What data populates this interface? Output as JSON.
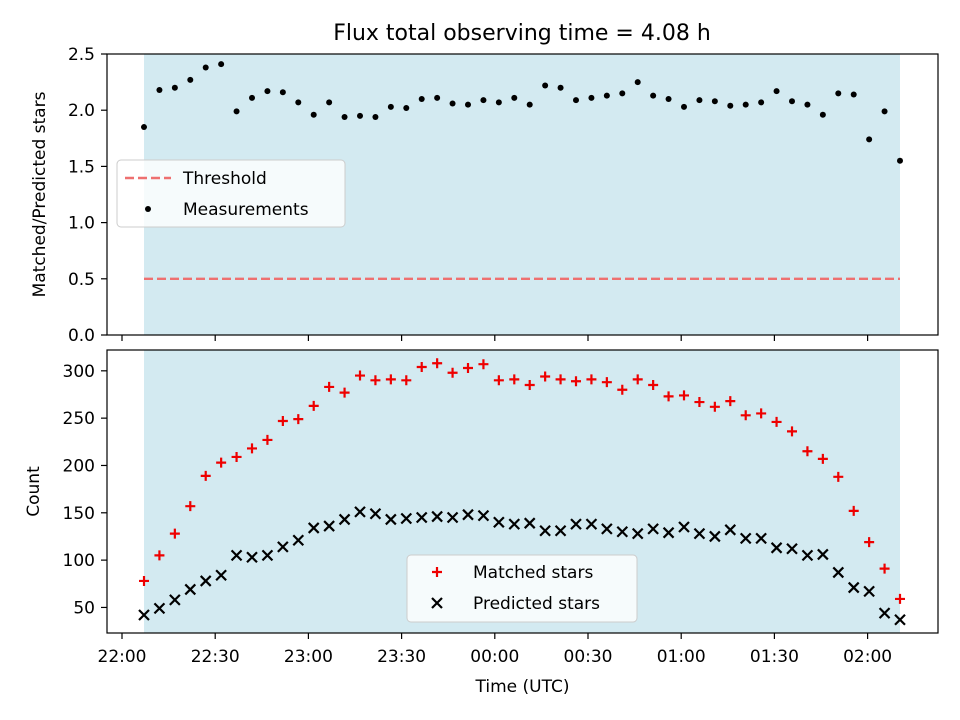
{
  "title": "Flux total observing time = 4.08 h",
  "colors": {
    "shade": "#d3eaf1",
    "threshold": "#ee7070",
    "measurement": "#000000",
    "matched": "#ee0000",
    "predicted": "#000000"
  },
  "chart_data": [
    {
      "type": "scatter",
      "ylabel": "Matched/Predicted stars",
      "ylim": [
        0,
        2.5
      ],
      "yticks": [
        "0.0",
        "0.5",
        "1.0",
        "1.5",
        "2.0",
        "2.5"
      ],
      "legend": {
        "placement": "center-left",
        "entries": [
          "Threshold",
          "Measurements"
        ]
      },
      "threshold": {
        "name": "Threshold",
        "value": 0.5
      },
      "series": [
        {
          "name": "Measurements",
          "values": [
            1.85,
            2.18,
            2.2,
            2.27,
            2.38,
            2.41,
            1.99,
            2.11,
            2.17,
            2.16,
            2.07,
            1.96,
            2.07,
            1.94,
            1.95,
            1.94,
            2.03,
            2.02,
            2.1,
            2.11,
            2.06,
            2.05,
            2.09,
            2.07,
            2.11,
            2.05,
            2.22,
            2.2,
            2.09,
            2.11,
            2.13,
            2.15,
            2.25,
            2.13,
            2.1,
            2.03,
            2.09,
            2.08,
            2.04,
            2.05,
            2.07,
            2.17,
            2.08,
            2.05,
            1.96,
            2.15,
            2.14,
            1.74,
            1.99,
            1.55
          ]
        }
      ]
    },
    {
      "type": "scatter",
      "xlabel": "Time (UTC)",
      "ylabel": "Count",
      "ylim": [
        23,
        322
      ],
      "yticks": [
        "50",
        "100",
        "150",
        "200",
        "250",
        "300"
      ],
      "xticks": [
        "22:00",
        "22:30",
        "23:00",
        "23:30",
        "00:00",
        "00:30",
        "01:00",
        "01:30",
        "02:00"
      ],
      "legend": {
        "placement": "bottom-center",
        "entries": [
          "Matched stars",
          "Predicted stars"
        ]
      },
      "series": [
        {
          "name": "Matched stars",
          "values": [
            78,
            105,
            128,
            157,
            189,
            203,
            209,
            218,
            227,
            247,
            249,
            263,
            283,
            277,
            295,
            290,
            291,
            290,
            304,
            308,
            298,
            303,
            307,
            290,
            291,
            285,
            294,
            291,
            289,
            291,
            288,
            280,
            291,
            285,
            273,
            274,
            267,
            262,
            268,
            253,
            255,
            246,
            236,
            215,
            207,
            188,
            152,
            119,
            91,
            59
          ]
        },
        {
          "name": "Predicted stars",
          "values": [
            42,
            49,
            58,
            69,
            78,
            84,
            105,
            103,
            105,
            114,
            121,
            134,
            136,
            143,
            151,
            149,
            143,
            144,
            145,
            146,
            145,
            148,
            147,
            140,
            138,
            139,
            131,
            131,
            138,
            138,
            133,
            130,
            128,
            133,
            129,
            135,
            128,
            125,
            132,
            123,
            123,
            113,
            112,
            105,
            106,
            87,
            71,
            67,
            44,
            37
          ]
        }
      ]
    }
  ]
}
